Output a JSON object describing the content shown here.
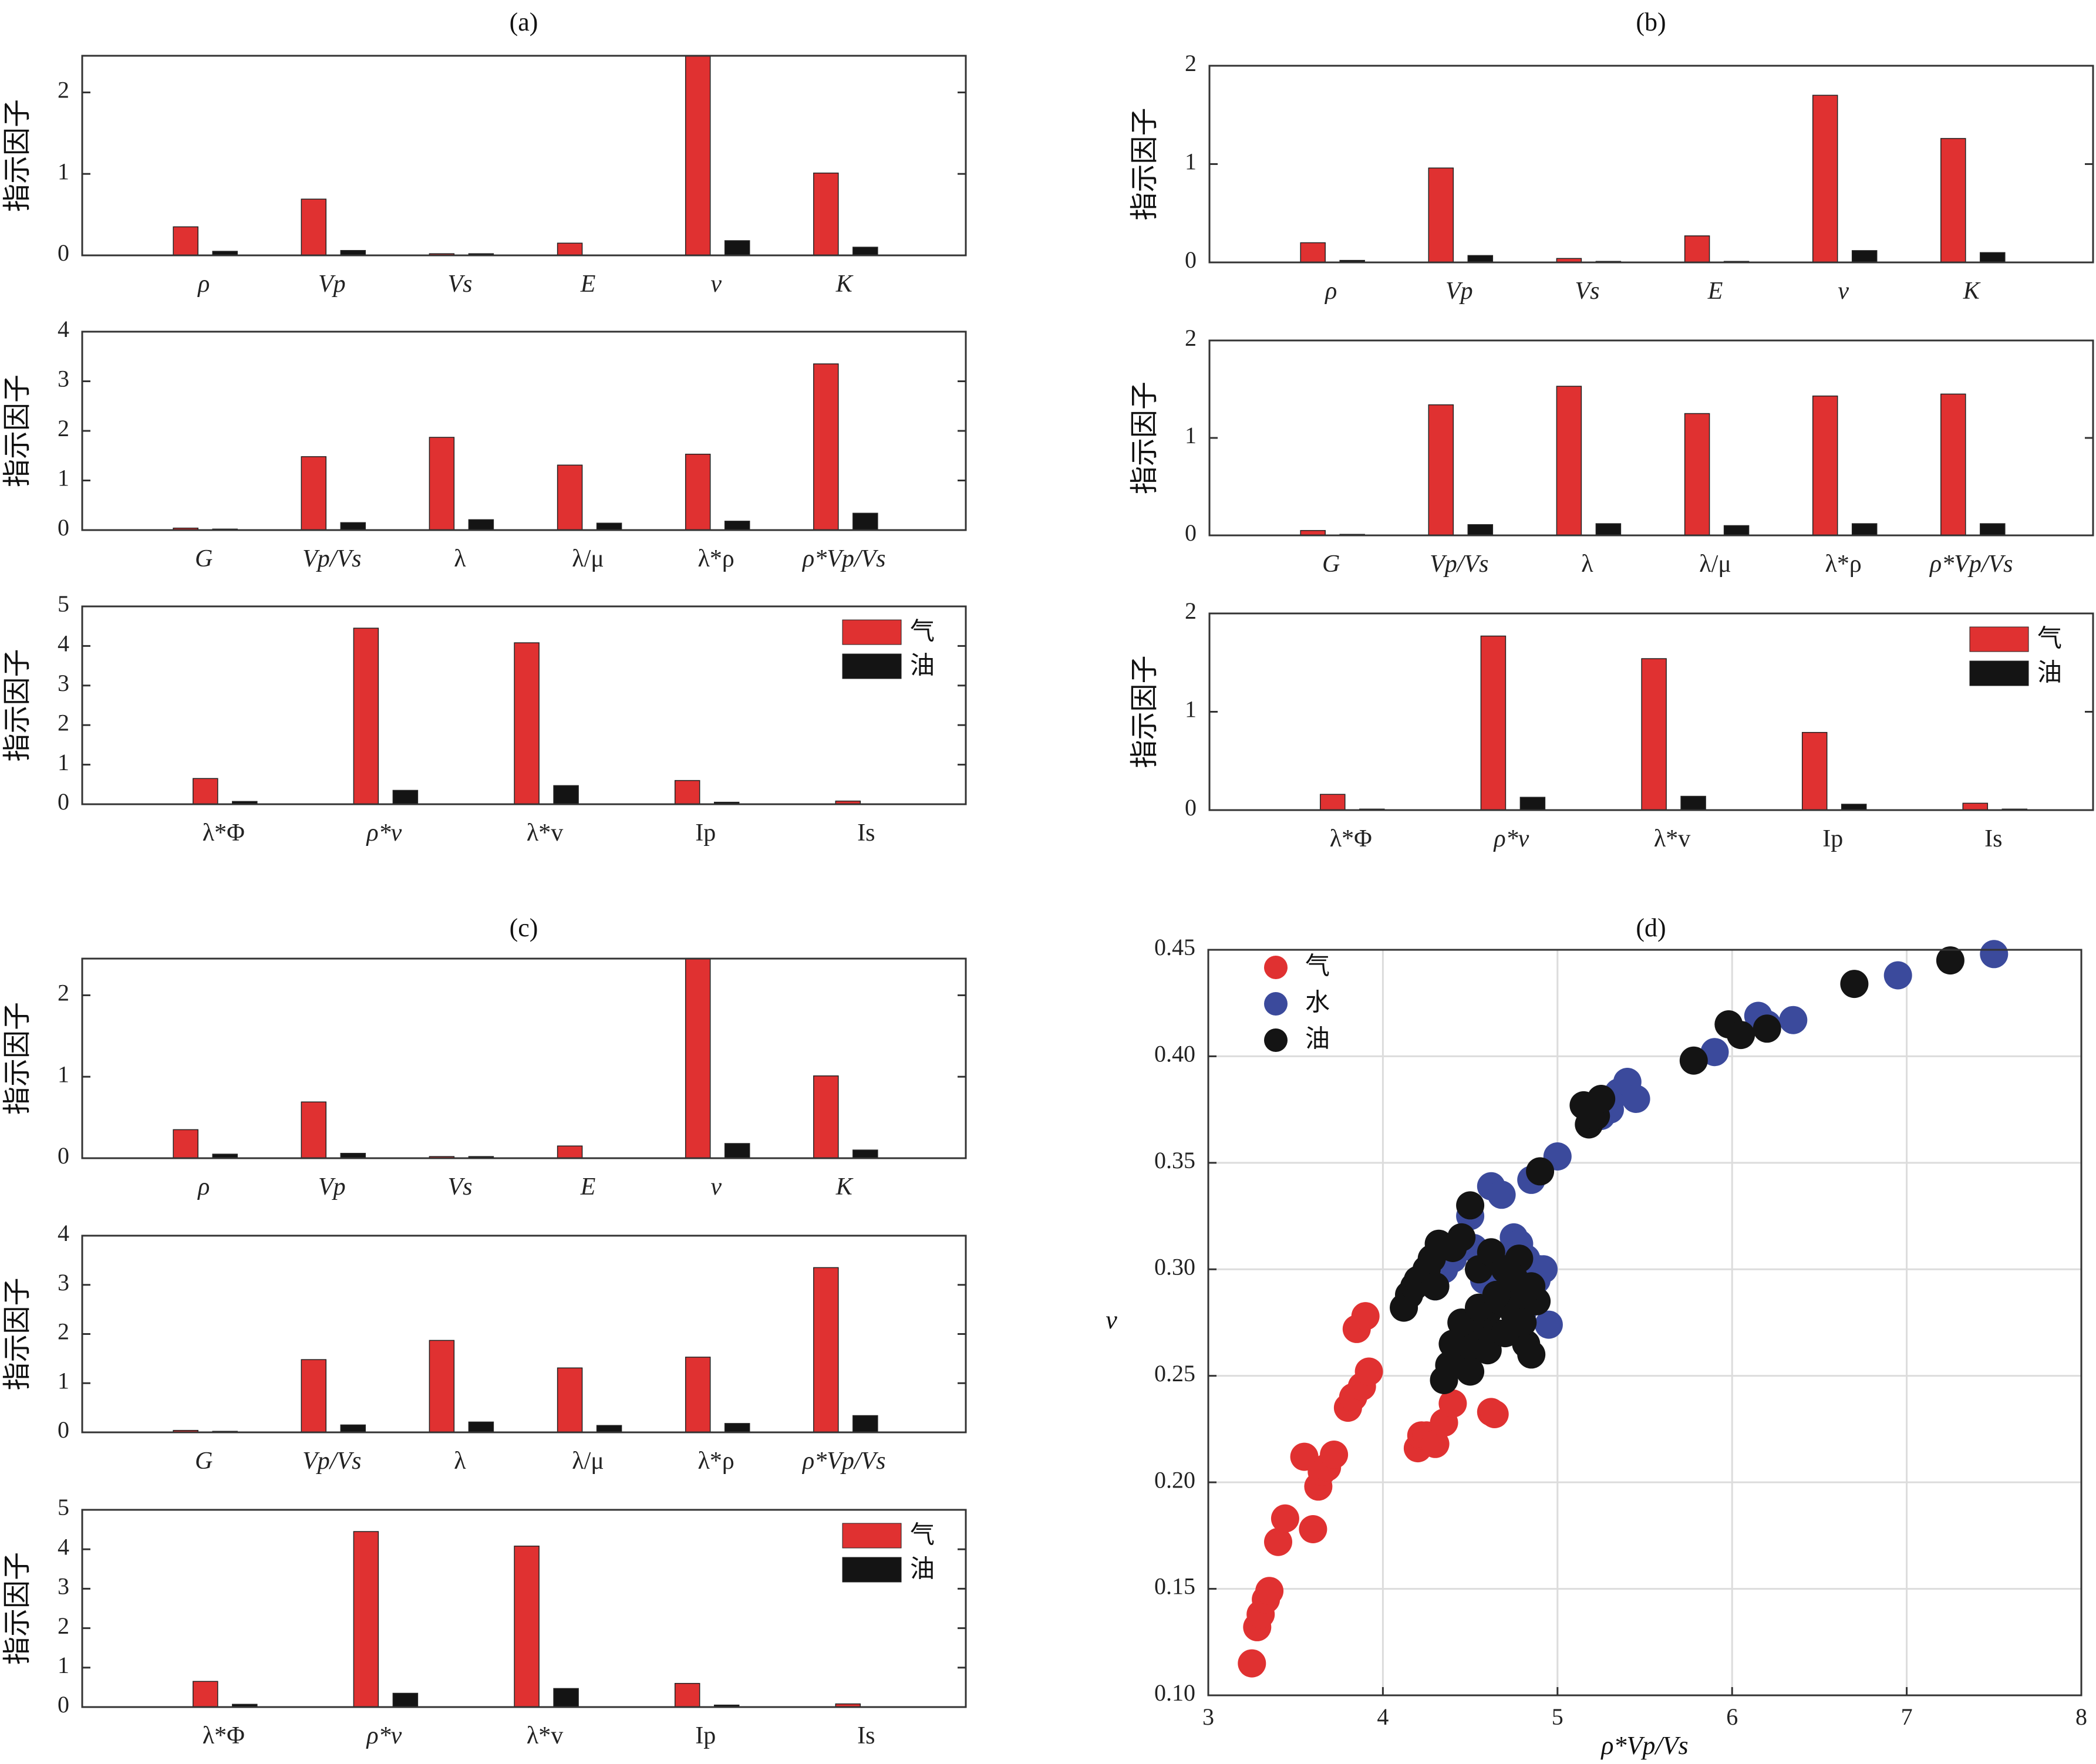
{
  "colors": {
    "gas": "#e03131",
    "oil": "#141414",
    "water": "#3b4a9c",
    "grid": "#dcdcdc",
    "axis": "#333333"
  },
  "legend_bar": {
    "gas": "气",
    "oil": "油"
  },
  "ylabel": "指示因子",
  "chart_data": [
    {
      "id": "a",
      "title": "(a)",
      "type": "bar",
      "subplots": [
        {
          "categories": [
            "ρ",
            "Vp",
            "Vs",
            "E",
            "v",
            "K"
          ],
          "italic": [
            true,
            true,
            true,
            true,
            true,
            true
          ],
          "ylim": [
            0,
            2.45
          ],
          "yticks": [
            0,
            1,
            2
          ],
          "series": [
            {
              "key": "gas",
              "values": [
                0.35,
                0.69,
                0.02,
                0.15,
                2.45,
                1.01
              ]
            },
            {
              "key": "oil",
              "values": [
                0.05,
                0.06,
                0.02,
                0.0,
                0.18,
                0.1
              ]
            }
          ]
        },
        {
          "categories": [
            "G",
            "Vp/Vs",
            "λ",
            "λ/μ",
            "λ*ρ",
            "ρ*Vp/Vs"
          ],
          "italic": [
            true,
            true,
            false,
            false,
            false,
            true
          ],
          "ylim": [
            0,
            4
          ],
          "yticks": [
            0,
            1,
            2,
            3,
            4
          ],
          "series": [
            {
              "key": "gas",
              "values": [
                0.04,
                1.48,
                1.87,
                1.31,
                1.53,
                3.35
              ]
            },
            {
              "key": "oil",
              "values": [
                0.02,
                0.15,
                0.21,
                0.14,
                0.18,
                0.34
              ]
            }
          ]
        },
        {
          "categories": [
            "λ*Φ",
            "ρ*v",
            "λ*v",
            "Ip",
            "Is"
          ],
          "italic": [
            false,
            true,
            false,
            false,
            false
          ],
          "ylim": [
            0,
            5
          ],
          "yticks": [
            0,
            1,
            2,
            3,
            4,
            5
          ],
          "legend": true,
          "series": [
            {
              "key": "gas",
              "values": [
                0.65,
                4.45,
                4.08,
                0.6,
                0.08
              ]
            },
            {
              "key": "oil",
              "values": [
                0.07,
                0.35,
                0.47,
                0.05,
                0.01
              ]
            }
          ]
        }
      ]
    },
    {
      "id": "b",
      "title": "(b)",
      "type": "bar",
      "subplots": [
        {
          "categories": [
            "ρ",
            "Vp",
            "Vs",
            "E",
            "v",
            "K"
          ],
          "italic": [
            true,
            true,
            true,
            true,
            true,
            true
          ],
          "ylim": [
            0,
            2
          ],
          "yticks": [
            0,
            1,
            2
          ],
          "series": [
            {
              "key": "gas",
              "values": [
                0.2,
                0.96,
                0.04,
                0.27,
                1.7,
                1.26
              ]
            },
            {
              "key": "oil",
              "values": [
                0.02,
                0.07,
                0.01,
                0.01,
                0.12,
                0.1
              ]
            }
          ]
        },
        {
          "categories": [
            "G",
            "Vp/Vs",
            "λ",
            "λ/μ",
            "λ*ρ",
            "ρ*Vp/Vs"
          ],
          "italic": [
            true,
            true,
            false,
            false,
            false,
            true
          ],
          "ylim": [
            0,
            2
          ],
          "yticks": [
            0,
            1,
            2
          ],
          "series": [
            {
              "key": "gas",
              "values": [
                0.05,
                1.34,
                1.53,
                1.25,
                1.43,
                1.45
              ]
            },
            {
              "key": "oil",
              "values": [
                0.01,
                0.11,
                0.12,
                0.1,
                0.12,
                0.12
              ]
            }
          ]
        },
        {
          "categories": [
            "λ*Φ",
            "ρ*v",
            "λ*v",
            "Ip",
            "Is"
          ],
          "italic": [
            false,
            true,
            false,
            false,
            false
          ],
          "ylim": [
            0,
            2
          ],
          "yticks": [
            0,
            1,
            2
          ],
          "legend": true,
          "series": [
            {
              "key": "gas",
              "values": [
                0.16,
                1.77,
                1.54,
                0.79,
                0.07
              ]
            },
            {
              "key": "oil",
              "values": [
                0.01,
                0.13,
                0.14,
                0.06,
                0.01
              ]
            }
          ]
        }
      ]
    },
    {
      "id": "c",
      "title": "(c)",
      "type": "bar",
      "subplots": [
        {
          "categories": [
            "ρ",
            "Vp",
            "Vs",
            "E",
            "v",
            "K"
          ],
          "italic": [
            true,
            true,
            true,
            true,
            true,
            true
          ],
          "ylim": [
            0,
            2.45
          ],
          "yticks": [
            0,
            1,
            2
          ],
          "series": [
            {
              "key": "gas",
              "values": [
                0.35,
                0.69,
                0.02,
                0.15,
                2.45,
                1.01
              ]
            },
            {
              "key": "oil",
              "values": [
                0.05,
                0.06,
                0.02,
                0.0,
                0.18,
                0.1
              ]
            }
          ]
        },
        {
          "categories": [
            "G",
            "Vp/Vs",
            "λ",
            "λ/μ",
            "λ*ρ",
            "ρ*Vp/Vs"
          ],
          "italic": [
            true,
            true,
            false,
            false,
            false,
            true
          ],
          "ylim": [
            0,
            4
          ],
          "yticks": [
            0,
            1,
            2,
            3,
            4
          ],
          "series": [
            {
              "key": "gas",
              "values": [
                0.04,
                1.48,
                1.87,
                1.31,
                1.53,
                3.35
              ]
            },
            {
              "key": "oil",
              "values": [
                0.02,
                0.15,
                0.21,
                0.14,
                0.18,
                0.34
              ]
            }
          ]
        },
        {
          "categories": [
            "λ*Φ",
            "ρ*v",
            "λ*v",
            "Ip",
            "Is"
          ],
          "italic": [
            false,
            true,
            false,
            false,
            false
          ],
          "ylim": [
            0,
            5
          ],
          "yticks": [
            0,
            1,
            2,
            3,
            4,
            5
          ],
          "legend": true,
          "series": [
            {
              "key": "gas",
              "values": [
                0.65,
                4.45,
                4.08,
                0.6,
                0.08
              ]
            },
            {
              "key": "oil",
              "values": [
                0.07,
                0.35,
                0.47,
                0.05,
                0.01
              ]
            }
          ]
        }
      ]
    },
    {
      "id": "d",
      "title": "(d)",
      "type": "scatter",
      "xlabel": "ρ*Vp/Vs",
      "ylabel": "v",
      "xlim": [
        3,
        8
      ],
      "ylim": [
        0.1,
        0.45
      ],
      "xticks": [
        3,
        4,
        5,
        6,
        7,
        8
      ],
      "yticks": [
        0.1,
        0.15,
        0.2,
        0.25,
        0.3,
        0.35,
        0.4,
        0.45
      ],
      "ytick_labels": [
        "0.10",
        "0.15",
        "0.20",
        "0.25",
        "0.30",
        "0.35",
        "0.40",
        "0.45"
      ],
      "grid": true,
      "legend_position": "top-left",
      "series": [
        {
          "key": "gas",
          "name": "气",
          "x": [
            3.25,
            3.28,
            3.3,
            3.33,
            3.35,
            3.4,
            3.44,
            3.55,
            3.6,
            3.63,
            3.65,
            3.68,
            3.72,
            3.8,
            3.83,
            3.85,
            3.88,
            3.9,
            3.92,
            4.2,
            4.22,
            4.25,
            4.3,
            4.35,
            4.4,
            4.62,
            4.64
          ],
          "y": [
            0.115,
            0.132,
            0.138,
            0.145,
            0.149,
            0.172,
            0.183,
            0.212,
            0.178,
            0.198,
            0.205,
            0.207,
            0.213,
            0.235,
            0.24,
            0.272,
            0.245,
            0.278,
            0.252,
            0.216,
            0.222,
            0.222,
            0.218,
            0.228,
            0.237,
            0.233,
            0.232
          ]
        },
        {
          "key": "water",
          "name": "水",
          "x": [
            4.3,
            4.35,
            4.4,
            4.45,
            4.5,
            4.52,
            4.55,
            4.58,
            4.6,
            4.62,
            4.65,
            4.68,
            4.7,
            4.72,
            4.75,
            4.78,
            4.8,
            4.82,
            4.85,
            4.88,
            4.9,
            4.92,
            4.95,
            5.0,
            5.25,
            5.3,
            5.35,
            5.4,
            5.45,
            5.9,
            6.15,
            6.2,
            6.35,
            6.95,
            7.5
          ],
          "y": [
            0.292,
            0.3,
            0.305,
            0.315,
            0.325,
            0.31,
            0.28,
            0.295,
            0.3,
            0.339,
            0.305,
            0.335,
            0.29,
            0.3,
            0.315,
            0.312,
            0.28,
            0.305,
            0.342,
            0.295,
            0.3,
            0.3,
            0.274,
            0.353,
            0.372,
            0.375,
            0.383,
            0.388,
            0.38,
            0.402,
            0.419,
            0.415,
            0.417,
            0.438,
            0.448
          ]
        },
        {
          "key": "oil",
          "name": "油",
          "x": [
            4.12,
            4.15,
            4.18,
            4.2,
            4.25,
            4.28,
            4.3,
            4.32,
            4.35,
            4.38,
            4.4,
            4.42,
            4.45,
            4.48,
            4.5,
            4.52,
            4.55,
            4.58,
            4.6,
            4.62,
            4.65,
            4.68,
            4.7,
            4.72,
            4.75,
            4.78,
            4.8,
            4.82,
            4.85,
            4.88,
            4.9,
            5.15,
            5.18,
            5.2,
            5.22,
            5.25,
            5.78,
            5.98,
            6.05,
            6.2,
            6.7,
            7.25,
            4.4,
            4.45,
            4.5,
            4.55,
            4.6,
            4.65,
            4.7,
            4.75,
            4.8,
            4.85
          ],
          "y": [
            0.282,
            0.288,
            0.292,
            0.295,
            0.3,
            0.305,
            0.292,
            0.312,
            0.248,
            0.255,
            0.31,
            0.26,
            0.315,
            0.262,
            0.33,
            0.27,
            0.3,
            0.275,
            0.28,
            0.308,
            0.27,
            0.285,
            0.3,
            0.29,
            0.28,
            0.305,
            0.29,
            0.265,
            0.26,
            0.285,
            0.346,
            0.377,
            0.368,
            0.375,
            0.372,
            0.38,
            0.398,
            0.415,
            0.41,
            0.413,
            0.434,
            0.445,
            0.265,
            0.275,
            0.252,
            0.282,
            0.262,
            0.288,
            0.27,
            0.296,
            0.275,
            0.292
          ]
        }
      ]
    }
  ]
}
